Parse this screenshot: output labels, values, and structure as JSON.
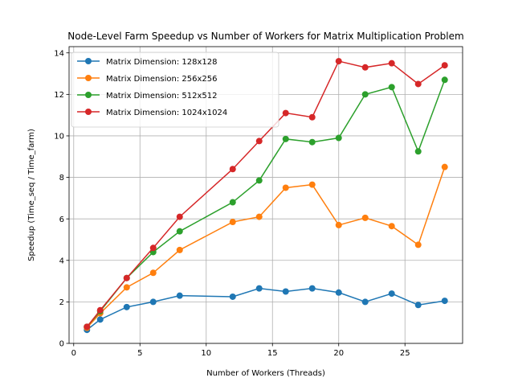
{
  "chart_data": {
    "type": "line",
    "title": "Node-Level Farm Speedup vs Number of Workers for Matrix Multiplication Problem",
    "xlabel": "Number of Workers (Threads)",
    "ylabel": "Speedup (Time_seq / Time_farm)",
    "xlim": [
      -0.35,
      29.35
    ],
    "ylim": [
      0,
      14.3
    ],
    "xticks": [
      0,
      5,
      10,
      15,
      20,
      25
    ],
    "yticks": [
      0,
      2,
      4,
      6,
      8,
      10,
      12,
      14
    ],
    "grid": true,
    "legend_position": "top-left",
    "x": [
      1,
      2,
      4,
      6,
      8,
      12,
      14,
      16,
      18,
      20,
      22,
      24,
      26,
      28
    ],
    "series": [
      {
        "name": "Matrix Dimension: 128x128",
        "color": "#1f77b4",
        "values": [
          0.65,
          1.15,
          1.75,
          2.0,
          2.3,
          2.25,
          2.65,
          2.5,
          2.65,
          2.45,
          2.0,
          2.4,
          1.85,
          2.05
        ]
      },
      {
        "name": "Matrix Dimension: 256x256",
        "color": "#ff7f0e",
        "values": [
          0.75,
          1.45,
          2.7,
          3.4,
          4.5,
          5.85,
          6.1,
          7.5,
          7.65,
          5.7,
          6.05,
          5.65,
          4.75,
          8.5
        ]
      },
      {
        "name": "Matrix Dimension: 512x512",
        "color": "#2ca02c",
        "values": [
          0.8,
          1.55,
          3.15,
          4.4,
          5.4,
          6.8,
          7.85,
          9.85,
          9.7,
          9.9,
          12.0,
          12.35,
          9.25,
          12.7
        ]
      },
      {
        "name": "Matrix Dimension: 1024x1024",
        "color": "#d62728",
        "values": [
          0.8,
          1.6,
          3.15,
          4.6,
          6.1,
          8.4,
          9.75,
          11.1,
          10.9,
          13.6,
          13.3,
          13.5,
          12.5,
          13.4
        ]
      }
    ]
  }
}
